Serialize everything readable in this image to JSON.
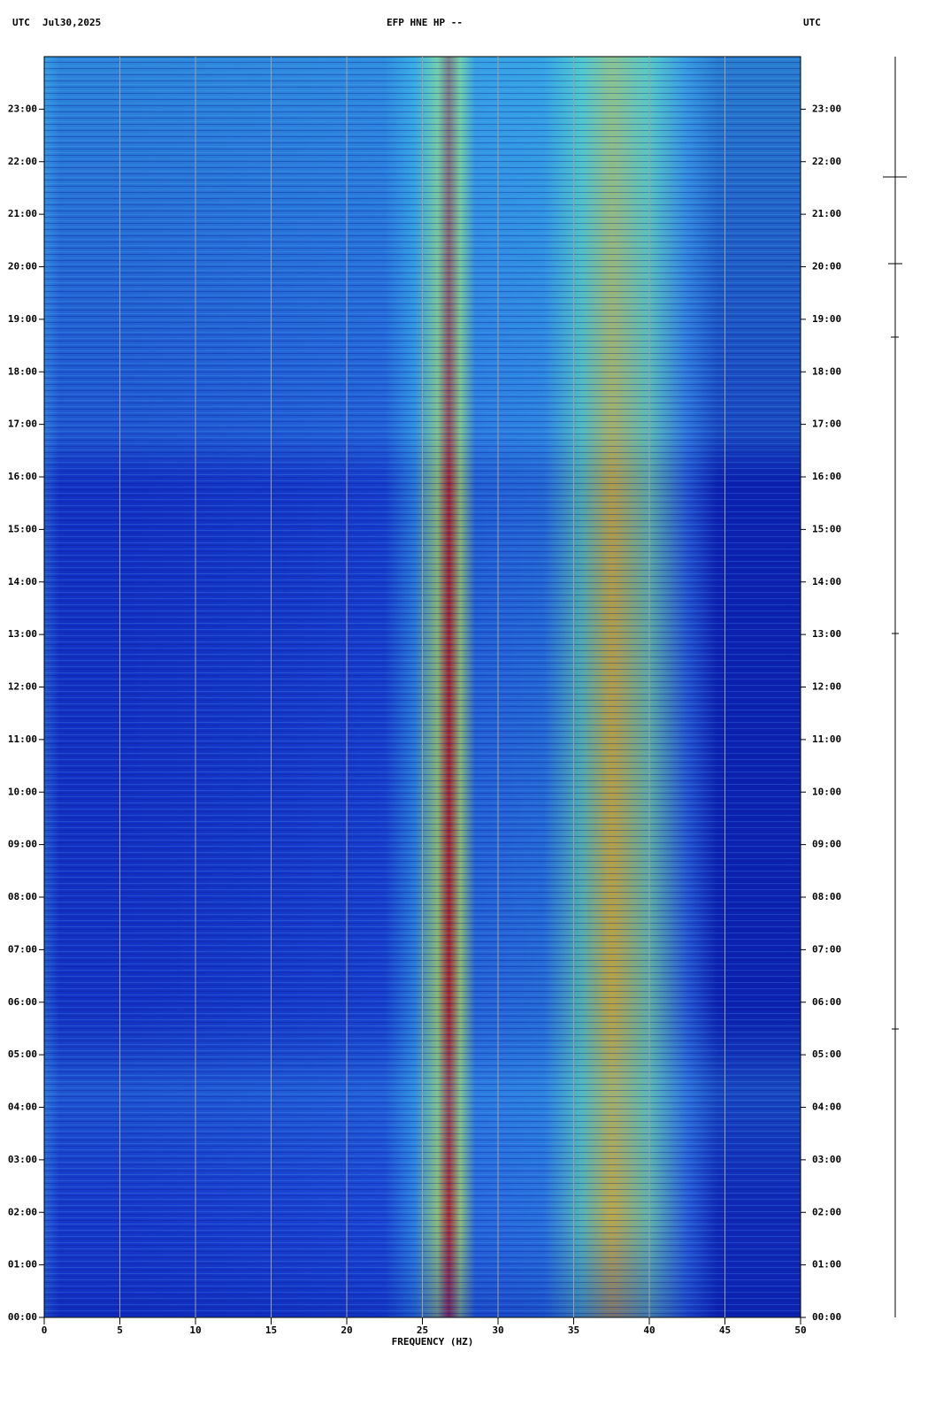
{
  "chart_data": {
    "type": "spectrogram",
    "title": "EFP HNE HP --",
    "date": "Jul30,2025",
    "timezone_left": "UTC",
    "timezone_right": "UTC",
    "x_label": "FREQUENCY (HZ)",
    "xlim": [
      0,
      50
    ],
    "xticks": [
      0,
      5,
      10,
      15,
      20,
      25,
      30,
      35,
      40,
      45,
      50
    ],
    "ylim": [
      0,
      24
    ],
    "yticks": [
      {
        "value": 0,
        "label": "00:00"
      },
      {
        "value": 1,
        "label": "01:00"
      },
      {
        "value": 2,
        "label": "02:00"
      },
      {
        "value": 3,
        "label": "03:00"
      },
      {
        "value": 4,
        "label": "04:00"
      },
      {
        "value": 5,
        "label": "05:00"
      },
      {
        "value": 6,
        "label": "06:00"
      },
      {
        "value": 7,
        "label": "07:00"
      },
      {
        "value": 8,
        "label": "08:00"
      },
      {
        "value": 9,
        "label": "09:00"
      },
      {
        "value": 10,
        "label": "10:00"
      },
      {
        "value": 11,
        "label": "11:00"
      },
      {
        "value": 12,
        "label": "12:00"
      },
      {
        "value": 13,
        "label": "13:00"
      },
      {
        "value": 14,
        "label": "14:00"
      },
      {
        "value": 15,
        "label": "15:00"
      },
      {
        "value": 16,
        "label": "16:00"
      },
      {
        "value": 17,
        "label": "17:00"
      },
      {
        "value": 18,
        "label": "18:00"
      },
      {
        "value": 19,
        "label": "19:00"
      },
      {
        "value": 20,
        "label": "20:00"
      },
      {
        "value": 21,
        "label": "21:00"
      },
      {
        "value": 22,
        "label": "22:00"
      },
      {
        "value": 23,
        "label": "23:00"
      }
    ],
    "grid": true,
    "grid_color": "#a0a0a0"
  }
}
